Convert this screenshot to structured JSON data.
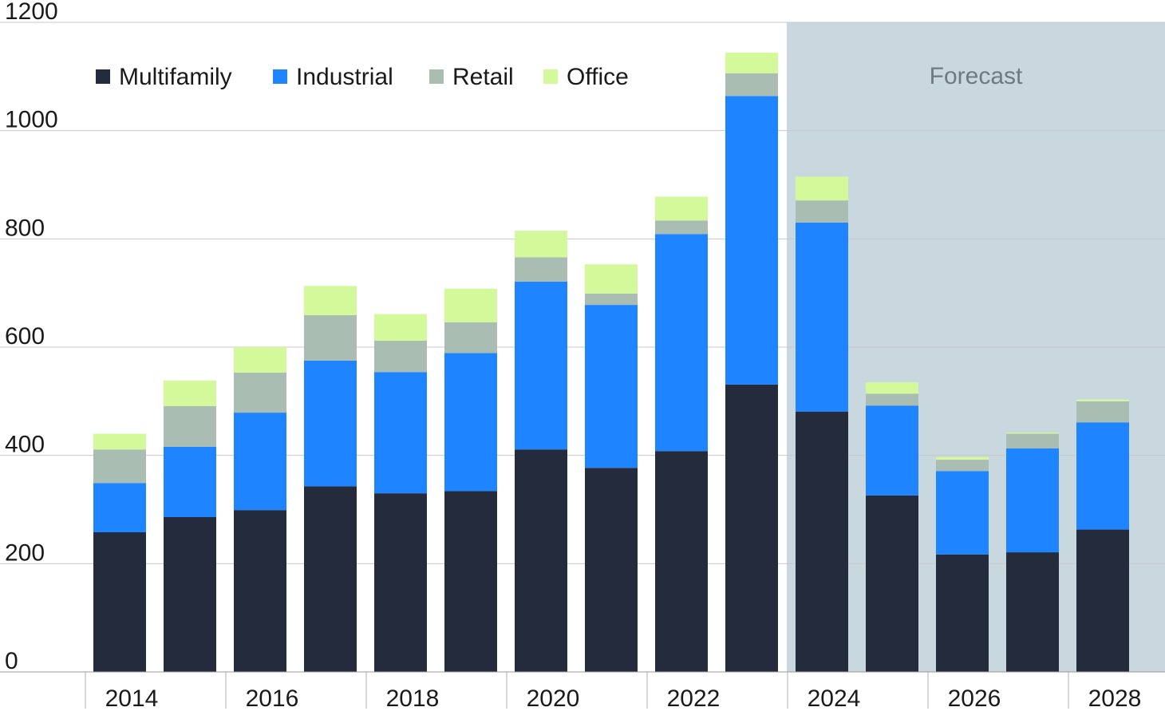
{
  "chart_data": {
    "type": "bar",
    "stacked": true,
    "title": "",
    "xlabel": "",
    "ylabel": "",
    "ylim": [
      0,
      1200
    ],
    "yticks": [
      0,
      200,
      400,
      600,
      800,
      1000,
      1200
    ],
    "categories": [
      "2014",
      "2015",
      "2016",
      "2017",
      "2018",
      "2019",
      "2020",
      "2021",
      "2022",
      "2023",
      "2024",
      "2025",
      "2026",
      "2027",
      "2028"
    ],
    "xtick_labels": [
      "2014",
      "2016",
      "2018",
      "2020",
      "2022",
      "2024",
      "2026",
      "2028"
    ],
    "grid": "horizontal",
    "legend_position": "top-left",
    "series": [
      {
        "name": "Multifamily",
        "color": "#232b3d",
        "values": [
          258,
          286,
          299,
          343,
          330,
          334,
          411,
          377,
          408,
          531,
          481,
          326,
          217,
          221,
          263
        ]
      },
      {
        "name": "Industrial",
        "color": "#1e84ff",
        "values": [
          91,
          130,
          180,
          232,
          224,
          255,
          310,
          301,
          401,
          533,
          349,
          166,
          154,
          192,
          198
        ]
      },
      {
        "name": "Retail",
        "color": "#a9bdb3",
        "values": [
          62,
          75,
          74,
          84,
          58,
          57,
          45,
          21,
          25,
          42,
          41,
          22,
          21,
          27,
          39
        ]
      },
      {
        "name": "Office",
        "color": "#d3f99b",
        "values": [
          29,
          47,
          47,
          54,
          49,
          62,
          49,
          54,
          44,
          38,
          44,
          21,
          5,
          2,
          3
        ]
      }
    ],
    "forecast": {
      "label": "Forecast",
      "start": "2024",
      "end": "2028",
      "color": "#c9d7de",
      "text_color": "#6e7a80"
    }
  }
}
